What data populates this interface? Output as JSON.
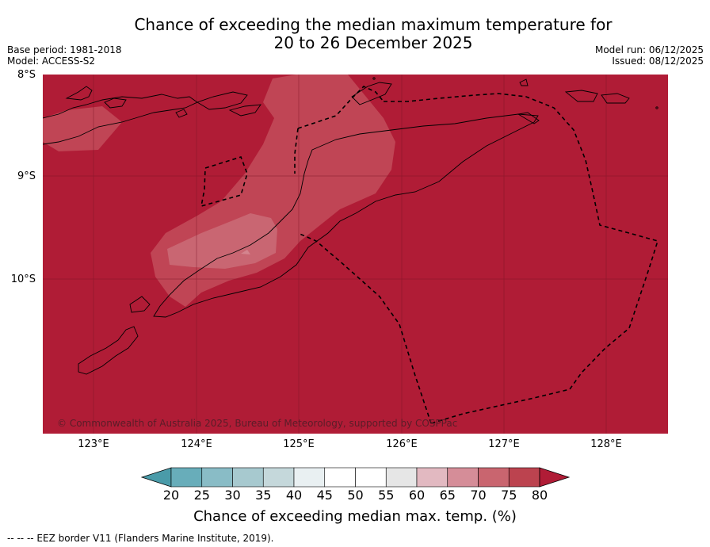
{
  "title_line1": "Chance of exceeding the median maximum temperature for",
  "title_line2": "20 to 26 December 2025",
  "base_period": "Base period: 1981-2018",
  "model": "Model: ACCESS-S2",
  "model_run": "Model run: 06/12/2025",
  "issued": "Issued: 08/12/2025",
  "lat_labels": [
    "8°S",
    "9°S",
    "10°S"
  ],
  "lon_labels": [
    "123°E",
    "124°E",
    "125°E",
    "126°E",
    "127°E",
    "128°E"
  ],
  "copyright": "© Commonwealth of Australia 2025, Bureau of Meteorology, supported by COSPPac",
  "colorbar": {
    "ticks": [
      "20",
      "25",
      "30",
      "35",
      "40",
      "45",
      "50",
      "55",
      "60",
      "65",
      "70",
      "75",
      "80"
    ],
    "label": "Chance of exceeding median max. temp. (%)",
    "colors": [
      "#4a9ba9",
      "#68adba",
      "#89bcc6",
      "#a7c9cf",
      "#c5d8db",
      "#e9f0f2",
      "#ffffff",
      "#ffffff",
      "#e6e6e6",
      "#e2b9c1",
      "#d58d98",
      "#c9656f",
      "#bc434f",
      "#b01c36"
    ]
  },
  "map_colors": {
    "background": "#b01c36",
    "band_75": "#c04555",
    "band_70": "#c96672",
    "band_65": "#d4848e"
  },
  "footer": "--  --  -- EEZ border V11 (Flanders Marine Institute, 2019)."
}
